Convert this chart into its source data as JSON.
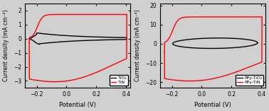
{
  "fig_width": 3.78,
  "fig_height": 1.57,
  "dpi": 100,
  "bg_color": "#d0d0d0",
  "panel1": {
    "xlim": [
      -0.28,
      0.43
    ],
    "ylim": [
      -3.5,
      2.5
    ],
    "xlabel": "Potential (V)",
    "ylabel": "Current density (mA cm⁻²)",
    "xticks": [
      -0.2,
      0.0,
      0.2,
      0.4
    ],
    "yticks": [
      -3,
      -2,
      -1,
      0,
      1,
      2
    ],
    "legend": [
      "TiO₂",
      "TiN"
    ],
    "colors": [
      "black",
      "red"
    ]
  },
  "panel2": {
    "xlim": [
      -0.28,
      0.43
    ],
    "ylim": [
      -23,
      21
    ],
    "xlabel": "Potential (V)",
    "ylabel": "Current density (mA cm⁻²)",
    "xticks": [
      -0.2,
      0.0,
      0.2,
      0.4
    ],
    "yticks": [
      -20,
      -10,
      0,
      10,
      20
    ],
    "legend": [
      "PPy-TiO₂",
      "PPy-TiN"
    ],
    "colors": [
      "black",
      "red"
    ]
  }
}
